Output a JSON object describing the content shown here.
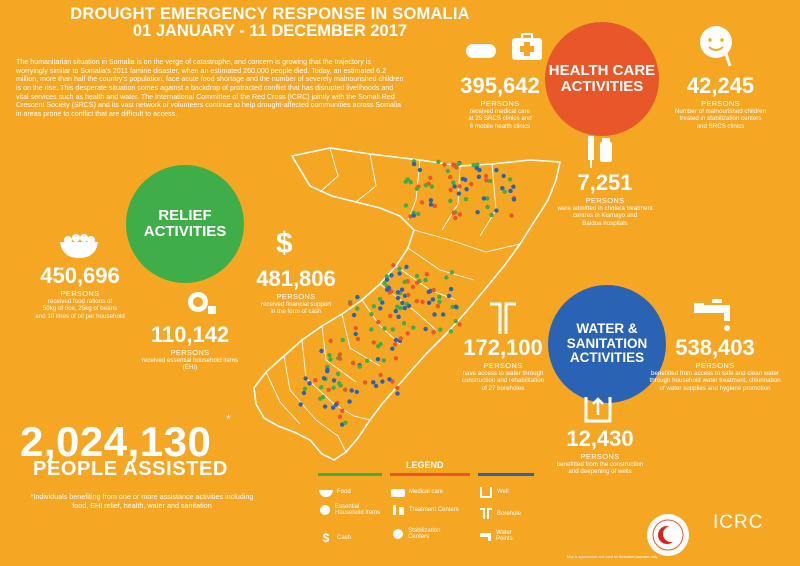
{
  "title": {
    "line1": "DROUGHT EMERGENCY RESPONSE IN SOMALIA",
    "line2": "01 JANUARY - 11 DECEMBER 2017"
  },
  "intro": "The humanitarian situation in Somalia is on the verge of catastrophe, and concern is growing that the trajectory is worryingly similar to Somalia's 2011 famine disaster, when an estimated 260,000 people died. Today, an estimated 6.2 million, more than half the country's population, face acute food shortage and the number of severely malnourished children is on the rise. This desperate situation comes against a backdrop of protracted conflict that has disrupted livelihoods and vital services such as health and water. The International Committee of the Red Cross (ICRC) jointly with the Somali Red Crescent Society (SRCS) and its vast network of volunteers continue to help drought-affected communities across Somalia in areas prone to conflict that are difficult to access.",
  "sections": {
    "health": {
      "line1": "HEALTH CARE",
      "line2": "ACTIVITIES",
      "color": "#E8572A"
    },
    "relief": {
      "line1": "RELIEF",
      "line2": "ACTIVITIES",
      "color": "#3FAE49"
    },
    "water": {
      "line1": "WATER &",
      "line2": "SANITATION",
      "line3": "ACTIVITIES",
      "color": "#2B63B4"
    }
  },
  "stats": {
    "medical": {
      "value": "395,642",
      "unit": "PERSONS",
      "desc1": "received medical care",
      "desc2": "at 25 SRCS clinics and",
      "desc3": "6 mobile health clinics"
    },
    "malnourished": {
      "value": "42,245",
      "unit": "PERSONS",
      "desc1": "Number of malnourished children",
      "desc2": "treated in stabilization centers",
      "desc3": "and SRCS clinics"
    },
    "cholera": {
      "value": "7,251",
      "unit": "PERSONS",
      "desc1": "were admitted in cholera treatment",
      "desc2": "centres in Kismayo and",
      "desc3": "Baidoa hospitals"
    },
    "food": {
      "value": "450,696",
      "unit": "PERSONS",
      "desc1": "received food rations of",
      "desc2": "50kg of rice, 25kg of beans",
      "desc3": "and 10 litres of oil per household"
    },
    "cash": {
      "value": "481,806",
      "unit": "PERSONS",
      "desc1": "received financial support",
      "desc2": "in the form of cash"
    },
    "ehi": {
      "value": "110,142",
      "unit": "PERSONS",
      "desc1": "received essential household items",
      "desc2": "(EHI)"
    },
    "boreholes": {
      "value": "172,100",
      "unit": "PERSONS",
      "desc1": "have access to water through",
      "desc2": "construction and rehabilitation",
      "desc3": "of 27 boreholes"
    },
    "cleanwater": {
      "value": "538,403",
      "unit": "PERSONS",
      "desc1": "benefitted from access to safe and clean water",
      "desc2": "through household water treatment, chlorination",
      "desc3": "of water supplies and hygiene promotion"
    },
    "wells": {
      "value": "12,430",
      "unit": "PERSONS",
      "desc1": "benefitted from the construction",
      "desc2": "and deepening of wells"
    }
  },
  "total": {
    "value": "2,024,130",
    "asterisk": "*",
    "label": "PEOPLE ASSISTED",
    "note": "*Individuals benefiting from one or more assistance activities including food, EHI relief, health, water and sanitation"
  },
  "legend": {
    "title": "LEGEND",
    "items": {
      "food": "Food",
      "ehi": "Essential Household Items",
      "cash": "Cash",
      "medical": "Medical care",
      "treatment": "Treatment Centers",
      "stabilization": "Stabilization Centers",
      "well": "Well",
      "borehole": "Borehole",
      "waterpoints": "Water Points"
    },
    "colors": {
      "green": "#3FAE49",
      "red": "#E8572A",
      "blue": "#2B63B4"
    }
  },
  "brand": {
    "name": "ICRC"
  },
  "footnote": "Map is approximate and used for illustrative purposes only"
}
